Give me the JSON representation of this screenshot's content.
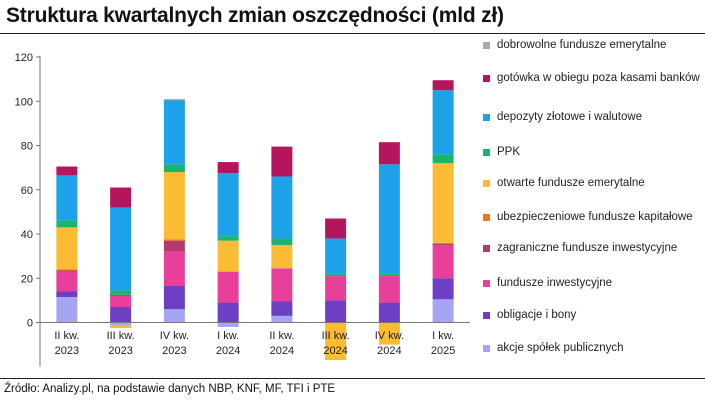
{
  "header": {
    "title": "Struktura kwartalnych zmian oszczędności (mld zł)"
  },
  "footer": {
    "source": "Źródło: Analizy.pl, na podstawie danych NBP, KNF, MF, TFI i PTE"
  },
  "colors": {
    "akcje": "#a7a4f2",
    "obligacje": "#6c3fc4",
    "fundusze_inwestycyjne": "#e8409a",
    "zagraniczne": "#b23a6e",
    "ubezpieczeniowe": "#f0761e",
    "ofe": "#fbbb33",
    "ppk": "#1ab46f",
    "depozyty": "#1da1e8",
    "gotowka": "#b4155c",
    "dobrowolne": "#a8a6b4"
  },
  "legend": [
    {
      "key": "dobrowolne",
      "label": "dobrowolne fundusze emerytalne",
      "color": "#a8a6b4"
    },
    {
      "key": "gotowka",
      "label": "gotówka w obiegu poza kasami banków",
      "color": "#b4155c"
    },
    {
      "key": "depozyty",
      "label": "depozyty złotowe i walutowe",
      "color": "#1da1e8"
    },
    {
      "key": "ppk",
      "label": "PPK",
      "color": "#1ab46f"
    },
    {
      "key": "ofe",
      "label": "otwarte fundusze emerytalne",
      "color": "#fbbb33"
    },
    {
      "key": "ubezpieczeniowe",
      "label": "ubezpieczeniowe fundusze kapitałowe",
      "color": "#f0761e"
    },
    {
      "key": "zagraniczne",
      "label": "zagraniczne fundusze inwestycyjne",
      "color": "#b23a6e"
    },
    {
      "key": "fundusze_inwestycyjne",
      "label": "fundusze inwestycyjne",
      "color": "#e8409a"
    },
    {
      "key": "obligacje",
      "label": "obligacje i bony",
      "color": "#6c3fc4"
    },
    {
      "key": "akcje",
      "label": "akcje spółek publicznych",
      "color": "#a7a4f2"
    }
  ],
  "chart_data": {
    "type": "bar",
    "stacked": true,
    "title": "Struktura kwartalnych zmian oszczędności (mld zł)",
    "xlabel": "",
    "ylabel": "",
    "ylim": [
      -20,
      120
    ],
    "yticks": [
      0,
      20,
      40,
      60,
      80,
      100,
      120
    ],
    "grid": false,
    "legend_position": "right",
    "categories": [
      [
        "II kw.",
        "2023"
      ],
      [
        "III kw.",
        "2023"
      ],
      [
        "IV kw.",
        "2023"
      ],
      [
        "I kw.",
        "2024"
      ],
      [
        "II kw.",
        "2024"
      ],
      [
        "III kw.",
        "2024"
      ],
      [
        "IV kw.",
        "2024"
      ],
      [
        "I kw.",
        "2025"
      ]
    ],
    "series": [
      {
        "key": "akcje",
        "name": "akcje spółek publicznych",
        "values": [
          11.5,
          -1.5,
          6,
          -2,
          3,
          0,
          0,
          10.5
        ]
      },
      {
        "key": "obligacje",
        "name": "obligacje i bony",
        "values": [
          2.5,
          7,
          10.5,
          9,
          6.5,
          10,
          9,
          9.5
        ]
      },
      {
        "key": "fundusze_inwestycyjne",
        "name": "fundusze inwestycyjne",
        "values": [
          9,
          5,
          15.5,
          14,
          15,
          11,
          12,
          15
        ]
      },
      {
        "key": "zagraniczne",
        "name": "zagraniczne fundusze inwestycyjne",
        "values": [
          0.5,
          0.5,
          5,
          0,
          0,
          0,
          0,
          0.5
        ]
      },
      {
        "key": "ubezpieczeniowe",
        "name": "ubezpieczeniowe fundusze kapitałowe",
        "values": [
          0.5,
          0,
          0.5,
          0,
          0,
          0,
          0,
          0.5
        ]
      },
      {
        "key": "ofe",
        "name": "otwarte fundusze emerytalne",
        "values": [
          19,
          -1,
          30.5,
          14,
          10.5,
          -17,
          -10,
          36
        ]
      },
      {
        "key": "ppk",
        "name": "PPK",
        "values": [
          3,
          2,
          3.5,
          2,
          3,
          1,
          1,
          4
        ]
      },
      {
        "key": "depozyty",
        "name": "depozyty złotowe i walutowe",
        "values": [
          20.5,
          37.5,
          29,
          28.5,
          28,
          16,
          49.5,
          29
        ]
      },
      {
        "key": "gotowka",
        "name": "gotówka w obiegu poza kasami banków",
        "values": [
          4,
          9,
          0,
          5,
          13.5,
          9,
          10,
          4.5
        ]
      },
      {
        "key": "dobrowolne",
        "name": "dobrowolne fundusze emerytalne",
        "values": [
          0,
          0,
          0.5,
          0,
          0,
          0,
          0,
          0
        ]
      }
    ]
  }
}
